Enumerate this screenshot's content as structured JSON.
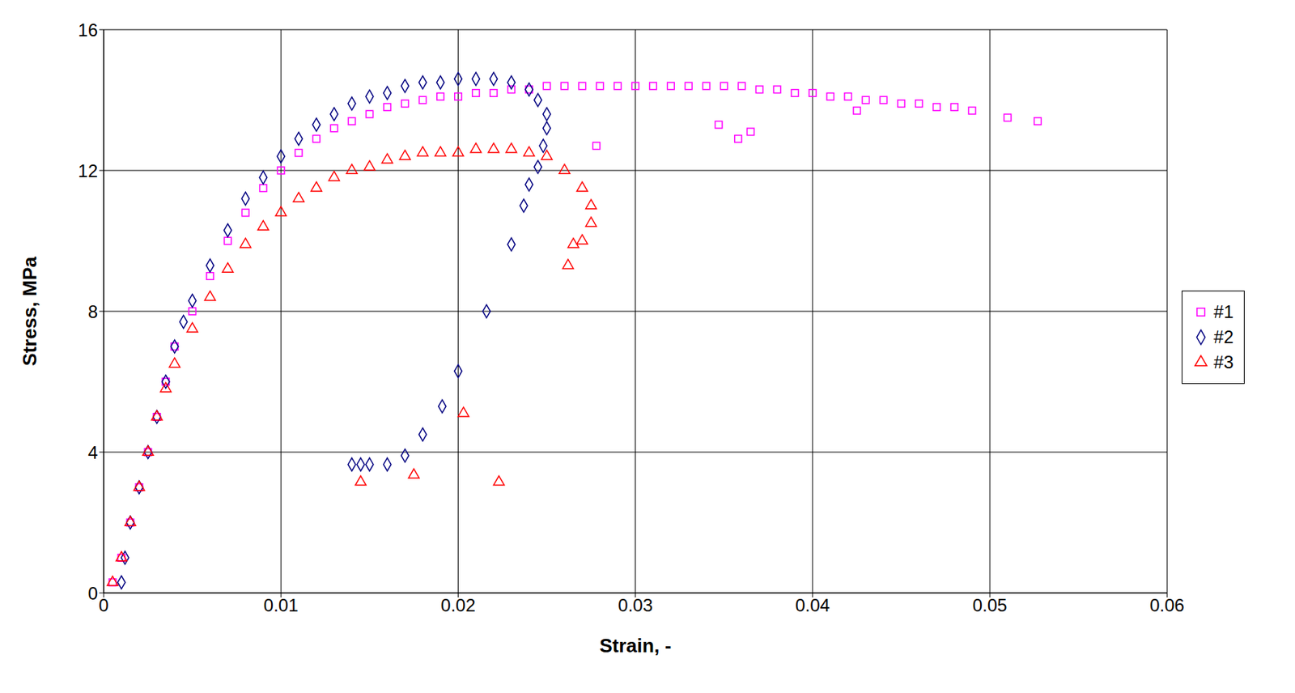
{
  "chart_data": {
    "type": "scatter",
    "x_label": "Strain, -",
    "y_label": "Stress, MPa",
    "xlim": [
      0,
      0.06
    ],
    "xticks": [
      0,
      0.01,
      0.02,
      0.03,
      0.04,
      0.05,
      0.06
    ],
    "ylim": [
      0,
      16
    ],
    "yticks": [
      0,
      4,
      8,
      12,
      16
    ],
    "grid": true,
    "legend": "right",
    "series": [
      {
        "name": "#1",
        "color": "#ff00ff",
        "marker": "square",
        "x": [
          0.0005,
          0.001,
          0.0015,
          0.002,
          0.0025,
          0.003,
          0.0035,
          0.004,
          0.005,
          0.006,
          0.007,
          0.008,
          0.009,
          0.01,
          0.011,
          0.012,
          0.013,
          0.014,
          0.015,
          0.016,
          0.017,
          0.018,
          0.019,
          0.02,
          0.021,
          0.022,
          0.023,
          0.024,
          0.025,
          0.026,
          0.027,
          0.028,
          0.029,
          0.03,
          0.031,
          0.032,
          0.033,
          0.034,
          0.035,
          0.036,
          0.037,
          0.038,
          0.039,
          0.04,
          0.041,
          0.042,
          0.043,
          0.044,
          0.045,
          0.046,
          0.047,
          0.048,
          0.049,
          0.051,
          0.0527,
          0.0278,
          0.0347,
          0.0358,
          0.0365,
          0.0425
        ],
        "values": [
          0.3,
          1,
          2,
          3,
          4,
          5,
          6,
          7,
          8,
          9,
          10,
          10.8,
          11.5,
          12,
          12.5,
          12.9,
          13.2,
          13.4,
          13.6,
          13.8,
          13.9,
          14.0,
          14.1,
          14.1,
          14.2,
          14.2,
          14.3,
          14.3,
          14.4,
          14.4,
          14.4,
          14.4,
          14.4,
          14.4,
          14.4,
          14.4,
          14.4,
          14.4,
          14.4,
          14.4,
          14.3,
          14.3,
          14.2,
          14.2,
          14.1,
          14.1,
          14.0,
          14.0,
          13.9,
          13.9,
          13.8,
          13.8,
          13.7,
          13.5,
          13.4,
          12.7,
          13.3,
          12.9,
          13.1,
          13.7
        ]
      },
      {
        "name": "#2",
        "color": "#000080",
        "marker": "diamond",
        "x": [
          0.001,
          0.0012,
          0.0015,
          0.002,
          0.0025,
          0.003,
          0.0035,
          0.004,
          0.0045,
          0.005,
          0.006,
          0.007,
          0.008,
          0.009,
          0.01,
          0.011,
          0.012,
          0.013,
          0.014,
          0.015,
          0.016,
          0.017,
          0.018,
          0.019,
          0.02,
          0.021,
          0.022,
          0.023,
          0.024,
          0.0245,
          0.025,
          0.025,
          0.0248,
          0.0245,
          0.024,
          0.0237,
          0.023,
          0.0216,
          0.02,
          0.0191,
          0.018,
          0.017,
          0.016,
          0.015,
          0.0145,
          0.014
        ],
        "values": [
          0.3,
          1,
          2,
          3,
          4,
          5,
          6,
          7,
          7.7,
          8.3,
          9.3,
          10.3,
          11.2,
          11.8,
          12.4,
          12.9,
          13.3,
          13.6,
          13.9,
          14.1,
          14.2,
          14.4,
          14.5,
          14.5,
          14.6,
          14.6,
          14.6,
          14.5,
          14.3,
          14.0,
          13.6,
          13.2,
          12.7,
          12.1,
          11.6,
          11.0,
          9.9,
          8.0,
          6.3,
          5.3,
          4.5,
          3.9,
          3.65,
          3.65,
          3.65,
          3.65
        ]
      },
      {
        "name": "#3",
        "color": "#ff0000",
        "marker": "triangle",
        "x": [
          0.0005,
          0.001,
          0.0015,
          0.002,
          0.0025,
          0.003,
          0.0035,
          0.004,
          0.005,
          0.006,
          0.007,
          0.008,
          0.009,
          0.01,
          0.011,
          0.012,
          0.013,
          0.014,
          0.015,
          0.016,
          0.017,
          0.018,
          0.019,
          0.02,
          0.021,
          0.022,
          0.023,
          0.024,
          0.025,
          0.026,
          0.027,
          0.0275,
          0.0275,
          0.027,
          0.0265,
          0.0262,
          0.0203,
          0.0175,
          0.0145,
          0.0223
        ],
        "values": [
          0.3,
          1,
          2,
          3,
          4,
          5,
          5.8,
          6.5,
          7.5,
          8.4,
          9.2,
          9.9,
          10.4,
          10.8,
          11.2,
          11.5,
          11.8,
          12.0,
          12.1,
          12.3,
          12.4,
          12.5,
          12.5,
          12.5,
          12.6,
          12.6,
          12.6,
          12.5,
          12.4,
          12.0,
          11.5,
          11.0,
          10.5,
          10.0,
          9.9,
          9.3,
          5.1,
          3.35,
          3.15,
          3.15
        ]
      }
    ]
  }
}
